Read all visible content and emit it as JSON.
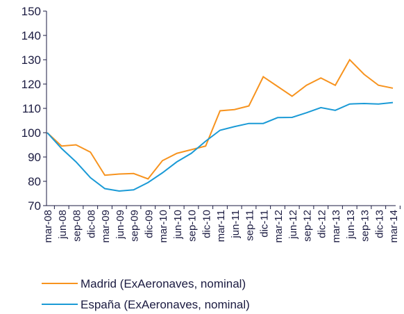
{
  "chart_data": {
    "type": "line",
    "categories": [
      "mar-08",
      "jun-08",
      "sep-08",
      "dic-08",
      "mar-09",
      "jun-09",
      "sep-09",
      "dic-09",
      "mar-10",
      "jun-10",
      "sep-10",
      "dic-10",
      "mar-11",
      "jun-11",
      "sep-11",
      "dic-11",
      "mar-12",
      "jun-12",
      "sep-12",
      "dic-12",
      "mar-13",
      "jun-13",
      "sep-13",
      "dic-13",
      "mar-14"
    ],
    "series": [
      {
        "name": "Madrid (ExAeronaves, nominal)",
        "color": "#f7931e",
        "values": [
          100,
          94.5,
          95,
          92,
          82.5,
          83,
          83.2,
          81,
          88.5,
          91.5,
          93,
          94.5,
          109,
          109.5,
          111,
          123,
          119,
          115,
          119.5,
          122.5,
          119.5,
          130,
          124,
          119.5,
          118.3
        ]
      },
      {
        "name": "España (ExAeronaves, nominal)",
        "color": "#1a9ad6",
        "values": [
          100,
          93.5,
          88,
          81.5,
          77,
          76,
          76.5,
          79.5,
          83.5,
          88,
          91.5,
          96.5,
          101,
          102.5,
          103.8,
          103.8,
          106.2,
          106.3,
          108.2,
          110.3,
          109.2,
          111.8,
          112,
          111.8,
          112.4
        ]
      }
    ],
    "ylim": [
      70,
      150
    ],
    "yticks": [
      70,
      80,
      90,
      100,
      110,
      120,
      130,
      140,
      150
    ]
  }
}
